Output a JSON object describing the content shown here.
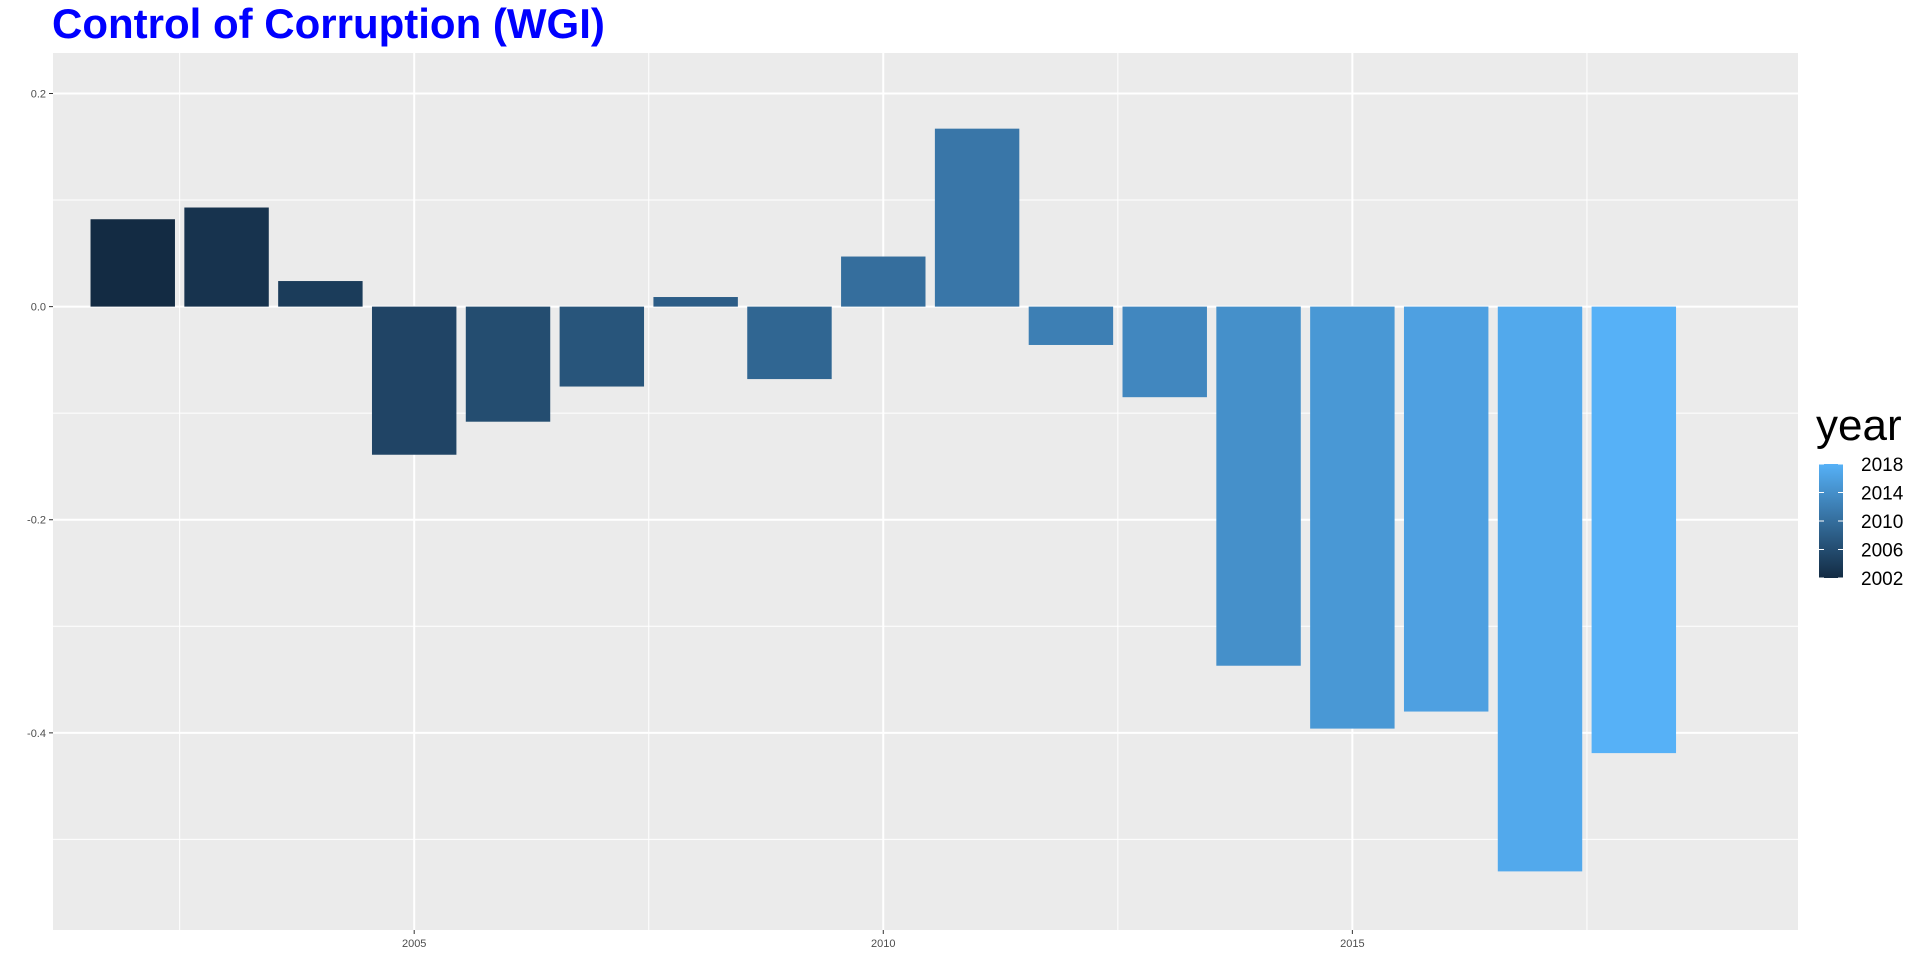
{
  "chart_data": {
    "type": "bar",
    "title": "Control of Corruption (WGI)",
    "xlabel": "",
    "ylabel": "",
    "x": [
      2002,
      2003,
      2004,
      2005,
      2006,
      2007,
      2008,
      2009,
      2010,
      2011,
      2012,
      2013,
      2014,
      2015,
      2016,
      2017,
      2018
    ],
    "values": [
      0.082,
      0.093,
      0.024,
      -0.139,
      -0.108,
      -0.075,
      0.009,
      -0.068,
      0.047,
      0.167,
      -0.036,
      -0.085,
      -0.337,
      -0.396,
      -0.38,
      -0.53,
      -0.419
    ],
    "xlim": [
      2001.15,
      2019.75
    ],
    "ylim": [
      -0.585,
      0.238
    ],
    "x_ticks": [
      2005,
      2010,
      2015
    ],
    "x_tick_labels": [
      "2005",
      "2010",
      "2015"
    ],
    "y_ticks": [
      0.2,
      0.0,
      -0.2,
      -0.4
    ],
    "y_tick_labels": [
      "0.2",
      "0.0",
      "-0.2",
      "-0.4"
    ],
    "grid": true,
    "legend": {
      "title": "year",
      "placement": "right",
      "labels": [
        "2018",
        "2014",
        "2010",
        "2006",
        "2002"
      ],
      "values": [
        2018,
        2014,
        2010,
        2006,
        2002
      ],
      "range": [
        2002,
        2018
      ]
    },
    "colors": {
      "title": "#0000ff",
      "panel_background": "#ebebeb",
      "grid": "#ffffff",
      "low": "#132b43",
      "high": "#56b1f7"
    }
  }
}
